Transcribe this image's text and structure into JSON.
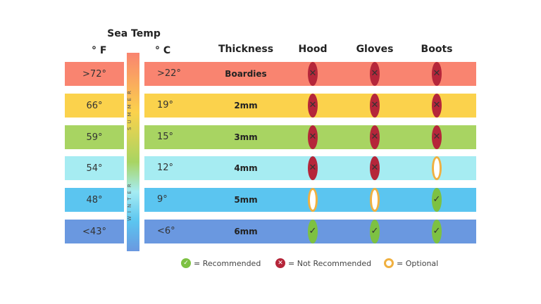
{
  "title": "Sea Temp",
  "units": {
    "f": "° F",
    "c": "° C"
  },
  "headers": {
    "thickness": "Thickness",
    "hood": "Hood",
    "gloves": "Gloves",
    "boots": "Boots"
  },
  "seasons": {
    "summer": "SUMMER",
    "winter": "WINTER"
  },
  "rows": [
    {
      "f": ">72°",
      "c": ">22°",
      "thickness": "Boardies",
      "hood": "no",
      "gloves": "no",
      "boots": "no",
      "color": "#f98470"
    },
    {
      "f": "66°",
      "c": "19°",
      "thickness": "2mm",
      "hood": "no",
      "gloves": "no",
      "boots": "no",
      "color": "#fbd24c"
    },
    {
      "f": "59°",
      "c": "15°",
      "thickness": "3mm",
      "hood": "no",
      "gloves": "no",
      "boots": "no",
      "color": "#a8d462"
    },
    {
      "f": "54°",
      "c": "12°",
      "thickness": "4mm",
      "hood": "no",
      "gloves": "no",
      "boots": "optional",
      "color": "#a6ecf2"
    },
    {
      "f": "48°",
      "c": "9°",
      "thickness": "5mm",
      "hood": "optional",
      "gloves": "optional",
      "boots": "yes",
      "color": "#5bc5f0"
    },
    {
      "f": "<43°",
      "c": "<6°",
      "thickness": "6mm",
      "hood": "yes",
      "gloves": "yes",
      "boots": "yes",
      "color": "#6a98e0"
    }
  ],
  "legend": {
    "yes": "= Recommended",
    "no": "= Not Recommended",
    "optional": "= Optional"
  },
  "icon_colors": {
    "yes": "#7dc142",
    "no": "#b5263a",
    "optional": "#f0b040"
  },
  "chart_data": {
    "type": "table",
    "title": "Sea Temp",
    "columns": [
      "° F",
      "° C",
      "Thickness",
      "Hood",
      "Gloves",
      "Boots"
    ],
    "rows": [
      [
        ">72°",
        ">22°",
        "Boardies",
        "Not Recommended",
        "Not Recommended",
        "Not Recommended"
      ],
      [
        "66°",
        "19°",
        "2mm",
        "Not Recommended",
        "Not Recommended",
        "Not Recommended"
      ],
      [
        "59°",
        "15°",
        "3mm",
        "Not Recommended",
        "Not Recommended",
        "Not Recommended"
      ],
      [
        "54°",
        "12°",
        "4mm",
        "Not Recommended",
        "Not Recommended",
        "Optional"
      ],
      [
        "48°",
        "9°",
        "5mm",
        "Optional",
        "Optional",
        "Recommended"
      ],
      [
        "<43°",
        "<6°",
        "6mm",
        "Recommended",
        "Recommended",
        "Recommended"
      ]
    ]
  }
}
